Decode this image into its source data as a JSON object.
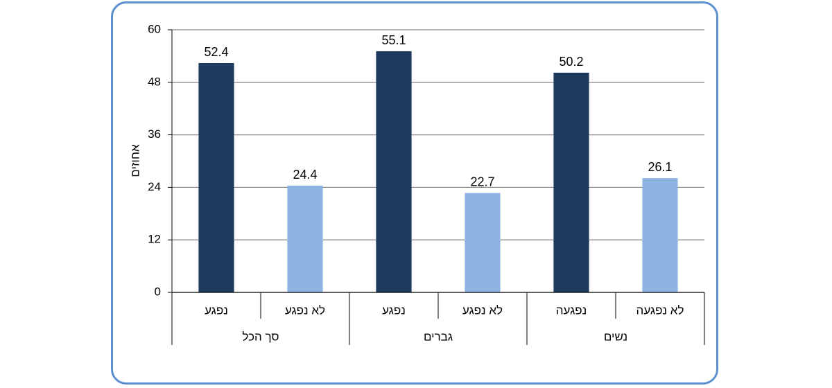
{
  "chart_data": {
    "type": "bar",
    "ylabel": "אחוזים",
    "ylim": [
      0,
      60
    ],
    "yticks": [
      0,
      12,
      24,
      36,
      48,
      60
    ],
    "grid": true,
    "groups": [
      {
        "label": "סך הכל",
        "bars": [
          {
            "label": "נפגע",
            "value": 52.4,
            "color": "#1f3a5f"
          },
          {
            "label": "לא נפגע",
            "value": 24.4,
            "color": "#8eb4e3"
          }
        ]
      },
      {
        "label": "גברים",
        "bars": [
          {
            "label": "נפגע",
            "value": 55.1,
            "color": "#1f3a5f"
          },
          {
            "label": "לא נפגע",
            "value": 22.7,
            "color": "#8eb4e3"
          }
        ]
      },
      {
        "label": "נשים",
        "bars": [
          {
            "label": "נפגעה",
            "value": 50.2,
            "color": "#1f3a5f"
          },
          {
            "label": "לא נפגעה",
            "value": 26.1,
            "color": "#8eb4e3"
          }
        ]
      }
    ]
  }
}
